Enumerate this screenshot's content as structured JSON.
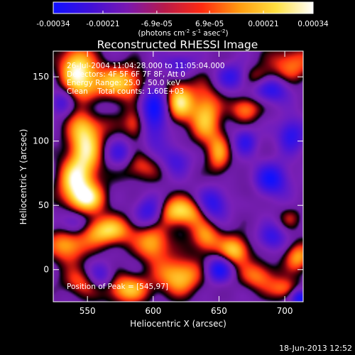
{
  "colorbar": {
    "min": -0.00034,
    "max": 0.00034,
    "tick_values": [
      -0.00034,
      -0.00021,
      -6.9e-05,
      6.9e-05,
      0.00021,
      0.00034
    ],
    "tick_labels": [
      "-0.00034",
      "-0.00021",
      "-6.9e-05",
      "6.9e-05",
      "0.00021",
      "0.00034"
    ],
    "units_main": "(photons cm",
    "units_sup1": "-2",
    "units_mid1": " s",
    "units_sup2": "-1",
    "units_mid2": " asec",
    "units_sup3": "-2",
    "units_end": ")",
    "colors": [
      "#1010ff",
      "#4010d8",
      "#7a18b0",
      "#b81a4a",
      "#ff2a10",
      "#ff9a10",
      "#ffe040",
      "#ffffff"
    ]
  },
  "chart_data": {
    "type": "heatmap",
    "title": "Reconstructed RHESSI Image",
    "xlabel": "Heliocentric X (arcsec)",
    "ylabel": "Heliocentric Y (arcsec)",
    "xlim": [
      524,
      714
    ],
    "ylim": [
      -25,
      170
    ],
    "x_ticks": [
      550,
      600,
      650,
      700
    ],
    "y_ticks": [
      0,
      50,
      100,
      150
    ],
    "annotations": [
      "26-Jul-2004 11:04:28.000 to 11:05:04.000",
      "Detectors: 4F 5F 6F 7F 8F, Att 0",
      "Energy Range: 25.0 - 50.0 keV",
      "Clean    Total counts: 1.60E+03"
    ],
    "peak_label": "Position of Peak = [545,97]",
    "peak": [
      545,
      97
    ],
    "grid": false,
    "blobs": [
      {
        "x": 548,
        "y": 100,
        "sx": 9,
        "sy": 30,
        "v": 1.0
      },
      {
        "x": 541,
        "y": 158,
        "sx": 9,
        "sy": 12,
        "v": 0.85
      },
      {
        "x": 538,
        "y": 68,
        "sx": 8,
        "sy": 12,
        "v": 0.65
      },
      {
        "x": 575,
        "y": 145,
        "sx": 20,
        "sy": 10,
        "v": 0.8
      },
      {
        "x": 560,
        "y": 120,
        "sx": 9,
        "sy": 10,
        "v": 0.45
      },
      {
        "x": 587,
        "y": 113,
        "sx": 7,
        "sy": 9,
        "v": 0.65
      },
      {
        "x": 620,
        "y": 130,
        "sx": 8,
        "sy": 11,
        "v": 0.9
      },
      {
        "x": 640,
        "y": 120,
        "sx": 8,
        "sy": 16,
        "v": 0.8
      },
      {
        "x": 650,
        "y": 90,
        "sx": 6,
        "sy": 12,
        "v": 0.6
      },
      {
        "x": 670,
        "y": 125,
        "sx": 8,
        "sy": 7,
        "v": 0.65
      },
      {
        "x": 705,
        "y": 160,
        "sx": 12,
        "sy": 10,
        "v": 0.6
      },
      {
        "x": 680,
        "y": 150,
        "sx": 8,
        "sy": 6,
        "v": 0.4
      },
      {
        "x": 590,
        "y": 80,
        "sx": 12,
        "sy": 8,
        "v": 0.5
      },
      {
        "x": 550,
        "y": 55,
        "sx": 10,
        "sy": 8,
        "v": 0.7
      },
      {
        "x": 565,
        "y": 30,
        "sx": 14,
        "sy": 8,
        "v": 0.9
      },
      {
        "x": 535,
        "y": 20,
        "sx": 10,
        "sy": 10,
        "v": 0.8
      },
      {
        "x": 600,
        "y": 20,
        "sx": 9,
        "sy": 10,
        "v": 0.75
      },
      {
        "x": 620,
        "y": 45,
        "sx": 16,
        "sy": 8,
        "v": 0.95
      },
      {
        "x": 640,
        "y": 25,
        "sx": 8,
        "sy": 9,
        "v": 0.7
      },
      {
        "x": 662,
        "y": 15,
        "sx": 8,
        "sy": 8,
        "v": 0.85
      },
      {
        "x": 620,
        "y": -5,
        "sx": 12,
        "sy": 10,
        "v": 0.85
      },
      {
        "x": 580,
        "y": -15,
        "sx": 12,
        "sy": 8,
        "v": 0.8
      },
      {
        "x": 545,
        "y": -10,
        "sx": 10,
        "sy": 8,
        "v": 0.5
      },
      {
        "x": 680,
        "y": -5,
        "sx": 10,
        "sy": 8,
        "v": 0.6
      },
      {
        "x": 710,
        "y": 10,
        "sx": 7,
        "sy": 8,
        "v": 0.7
      },
      {
        "x": 700,
        "y": -15,
        "sx": 8,
        "sy": 6,
        "v": 0.55
      },
      {
        "x": 704,
        "y": 40,
        "sx": 6,
        "sy": 6,
        "v": 0.3
      },
      {
        "x": 672,
        "y": 60,
        "sx": 6,
        "sy": 6,
        "v": 0.2
      },
      {
        "x": 555,
        "y": 125,
        "sx": 9,
        "sy": 9,
        "v": -0.85
      },
      {
        "x": 600,
        "y": 125,
        "sx": 8,
        "sy": 18,
        "v": -0.95
      },
      {
        "x": 540,
        "y": 35,
        "sx": 8,
        "sy": 8,
        "v": -0.7
      },
      {
        "x": 598,
        "y": 45,
        "sx": 8,
        "sy": 8,
        "v": -0.9
      },
      {
        "x": 645,
        "y": 50,
        "sx": 8,
        "sy": 9,
        "v": -0.85
      },
      {
        "x": 690,
        "y": 70,
        "sx": 9,
        "sy": 9,
        "v": -0.8
      },
      {
        "x": 705,
        "y": 105,
        "sx": 7,
        "sy": 9,
        "v": -0.7
      },
      {
        "x": 670,
        "y": 100,
        "sx": 6,
        "sy": 7,
        "v": -0.6
      },
      {
        "x": 690,
        "y": 140,
        "sx": 9,
        "sy": 7,
        "v": -0.7
      },
      {
        "x": 660,
        "y": 150,
        "sx": 8,
        "sy": 7,
        "v": -0.6
      },
      {
        "x": 620,
        "y": 160,
        "sx": 8,
        "sy": 6,
        "v": -0.5
      },
      {
        "x": 575,
        "y": 90,
        "sx": 7,
        "sy": 8,
        "v": -0.55
      },
      {
        "x": 617,
        "y": 85,
        "sx": 8,
        "sy": 8,
        "v": -0.5
      },
      {
        "x": 650,
        "y": 0,
        "sx": 7,
        "sy": 7,
        "v": -0.8
      },
      {
        "x": 560,
        "y": -5,
        "sx": 7,
        "sy": 7,
        "v": -0.55
      },
      {
        "x": 690,
        "y": 25,
        "sx": 7,
        "sy": 7,
        "v": -0.6
      },
      {
        "x": 712,
        "y": -22,
        "sx": 5,
        "sy": 5,
        "v": -0.9
      },
      {
        "x": 530,
        "y": 130,
        "sx": 6,
        "sy": 7,
        "v": -0.5
      }
    ]
  },
  "footer": {
    "date": "18-Jun-2013 12:52"
  }
}
